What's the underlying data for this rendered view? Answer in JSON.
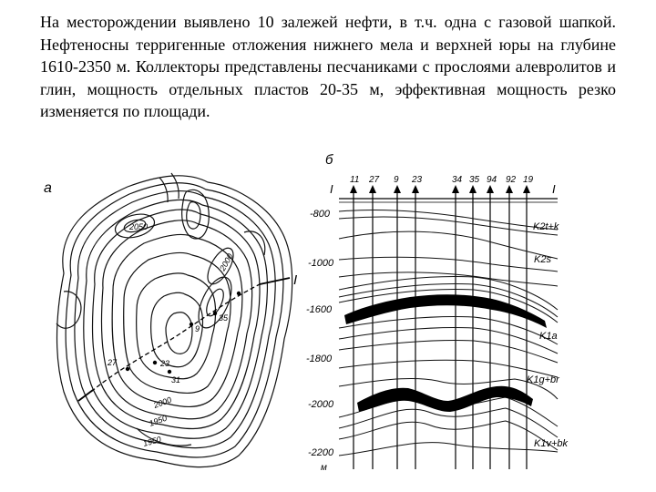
{
  "text": {
    "paragraph": "На месторождении выявлено 10 залежей нефти, в т.ч. одна с газовой шапкой. Нефтеносны терригенные отложения нижнего мела и верхней юры на глубине 1610-2350 м. Коллекторы представлены песчаниками с прослоями алевролитов и глин, мощность отдельных пластов 20-35 м, эффективная мощность резко изменяется по площади."
  },
  "map": {
    "panel_label": "а",
    "section_line_label": "I",
    "contour_labels": [
      "2050",
      "2000",
      "1950",
      "2000",
      "1950"
    ],
    "well_labels": [
      "27",
      "23",
      "31",
      "9",
      "35"
    ]
  },
  "section": {
    "panel_label": "б",
    "left_end_label": "I",
    "right_end_label": "I",
    "wells": [
      "11",
      "27",
      "9",
      "23",
      "34",
      "35",
      "94",
      "92",
      "19"
    ],
    "depths": [
      "-800",
      "-1000",
      "-1600",
      "-1800",
      "-2000",
      "-2200"
    ],
    "unit_label": "м",
    "strata": [
      "K2t+k",
      "K2s",
      "K1a",
      "K1g+br",
      "K1v+bk"
    ]
  }
}
